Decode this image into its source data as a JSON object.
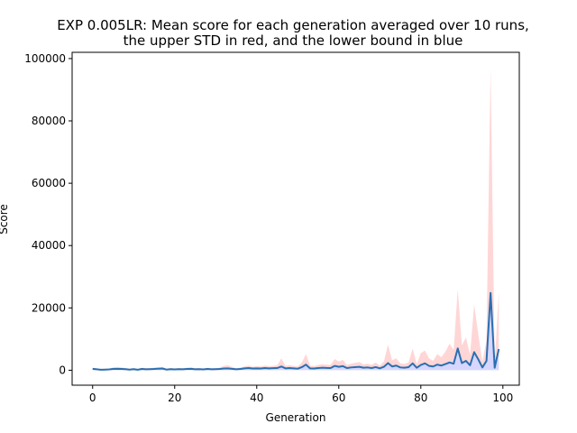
{
  "chart_data": {
    "type": "line",
    "title_line1": "EXP 0.005LR: Mean score for each generation averaged over 10 runs,",
    "title_line2": "the upper STD in red, and the lower bound in blue",
    "xlabel": "Generation",
    "ylabel": "Score",
    "xlim": [
      -5,
      104
    ],
    "ylim": [
      -4800,
      102000
    ],
    "xticks": [
      0,
      20,
      40,
      60,
      80,
      100
    ],
    "yticks": [
      0,
      20000,
      40000,
      60000,
      80000,
      100000
    ],
    "xtick_labels": [
      "0",
      "20",
      "40",
      "60",
      "80",
      "100"
    ],
    "ytick_labels": [
      "0",
      "20000",
      "40000",
      "60000",
      "80000",
      "100000"
    ],
    "colors": {
      "mean": "#2a6fb0",
      "upper": "#ffd6d6",
      "lower": "#d6d6ff"
    },
    "series": [
      {
        "role": "mean",
        "x": [
          0,
          1,
          2,
          3,
          4,
          5,
          6,
          7,
          8,
          9,
          10,
          11,
          12,
          13,
          14,
          15,
          16,
          17,
          18,
          19,
          20,
          21,
          22,
          23,
          24,
          25,
          26,
          27,
          28,
          29,
          30,
          31,
          32,
          33,
          34,
          35,
          36,
          37,
          38,
          39,
          40,
          41,
          42,
          43,
          44,
          45,
          46,
          47,
          48,
          49,
          50,
          51,
          52,
          53,
          54,
          55,
          56,
          57,
          58,
          59,
          60,
          61,
          62,
          63,
          64,
          65,
          66,
          67,
          68,
          69,
          70,
          71,
          72,
          73,
          74,
          75,
          76,
          77,
          78,
          79,
          80,
          81,
          82,
          83,
          84,
          85,
          86,
          87,
          88,
          89,
          90,
          91,
          92,
          93,
          94,
          95,
          96,
          97,
          98,
          99
        ],
        "values": [
          450,
          300,
          150,
          200,
          250,
          400,
          450,
          400,
          350,
          200,
          350,
          150,
          400,
          300,
          350,
          400,
          500,
          550,
          200,
          350,
          250,
          350,
          300,
          400,
          450,
          300,
          350,
          250,
          400,
          300,
          350,
          400,
          550,
          600,
          450,
          300,
          400,
          600,
          700,
          550,
          600,
          550,
          700,
          600,
          650,
          700,
          1200,
          600,
          700,
          600,
          500,
          1000,
          1800,
          600,
          550,
          700,
          800,
          750,
          700,
          1400,
          1100,
          1300,
          700,
          900,
          1000,
          1100,
          800,
          900,
          700,
          1000,
          600,
          1100,
          2300,
          1200,
          1500,
          900,
          800,
          1000,
          2200,
          800,
          1700,
          2200,
          1400,
          1200,
          1800,
          1500,
          2000,
          2500,
          2100,
          7000,
          2300,
          3000,
          1600,
          5800,
          3500,
          900,
          3000,
          24800,
          800,
          6800
        ]
      },
      {
        "role": "upper",
        "x": [
          0,
          1,
          2,
          3,
          4,
          5,
          6,
          7,
          8,
          9,
          10,
          11,
          12,
          13,
          14,
          15,
          16,
          17,
          18,
          19,
          20,
          21,
          22,
          23,
          24,
          25,
          26,
          27,
          28,
          29,
          30,
          31,
          32,
          33,
          34,
          35,
          36,
          37,
          38,
          39,
          40,
          41,
          42,
          43,
          44,
          45,
          46,
          47,
          48,
          49,
          50,
          51,
          52,
          53,
          54,
          55,
          56,
          57,
          58,
          59,
          60,
          61,
          62,
          63,
          64,
          65,
          66,
          67,
          68,
          69,
          70,
          71,
          72,
          73,
          74,
          75,
          76,
          77,
          78,
          79,
          80,
          81,
          82,
          83,
          84,
          85,
          86,
          87,
          88,
          89,
          90,
          91,
          92,
          93,
          94,
          95,
          96,
          97,
          98,
          99
        ],
        "values": [
          800,
          600,
          400,
          450,
          500,
          900,
          1100,
          900,
          700,
          500,
          700,
          400,
          800,
          650,
          700,
          850,
          1000,
          1100,
          500,
          700,
          550,
          700,
          650,
          800,
          900,
          650,
          700,
          550,
          800,
          650,
          700,
          800,
          1400,
          1600,
          1000,
          650,
          800,
          1200,
          1500,
          1100,
          1300,
          1200,
          1500,
          1300,
          1400,
          1600,
          3800,
          1400,
          1600,
          1400,
          1200,
          2500,
          5200,
          1500,
          1300,
          1700,
          1900,
          1800,
          1700,
          3600,
          2800,
          3300,
          1700,
          2100,
          2400,
          2600,
          1900,
          2100,
          1700,
          2500,
          1500,
          2800,
          8200,
          3200,
          3800,
          2200,
          2000,
          2500,
          7000,
          2000,
          5500,
          6300,
          3800,
          3000,
          5200,
          4200,
          6000,
          8500,
          6500,
          26000,
          8000,
          10500,
          5000,
          21000,
          11500,
          2800,
          9500,
          97000,
          2500,
          25000
        ]
      },
      {
        "role": "lower",
        "x": [
          0,
          1,
          2,
          3,
          4,
          5,
          6,
          7,
          8,
          9,
          10,
          11,
          12,
          13,
          14,
          15,
          16,
          17,
          18,
          19,
          20,
          21,
          22,
          23,
          24,
          25,
          26,
          27,
          28,
          29,
          30,
          31,
          32,
          33,
          34,
          35,
          36,
          37,
          38,
          39,
          40,
          41,
          42,
          43,
          44,
          45,
          46,
          47,
          48,
          49,
          50,
          51,
          52,
          53,
          54,
          55,
          56,
          57,
          58,
          59,
          60,
          61,
          62,
          63,
          64,
          65,
          66,
          67,
          68,
          69,
          70,
          71,
          72,
          73,
          74,
          75,
          76,
          77,
          78,
          79,
          80,
          81,
          82,
          83,
          84,
          85,
          86,
          87,
          88,
          89,
          90,
          91,
          92,
          93,
          94,
          95,
          96,
          97,
          98,
          99
        ],
        "values": [
          0,
          0,
          0,
          0,
          0,
          0,
          0,
          0,
          0,
          0,
          0,
          0,
          0,
          0,
          0,
          0,
          0,
          0,
          0,
          0,
          0,
          0,
          0,
          0,
          0,
          0,
          0,
          0,
          0,
          0,
          0,
          0,
          0,
          0,
          0,
          0,
          0,
          0,
          0,
          0,
          0,
          0,
          0,
          0,
          0,
          0,
          0,
          0,
          0,
          0,
          0,
          0,
          0,
          0,
          0,
          0,
          0,
          0,
          0,
          0,
          0,
          0,
          0,
          0,
          0,
          0,
          0,
          0,
          0,
          0,
          0,
          0,
          0,
          0,
          0,
          0,
          0,
          0,
          0,
          0,
          0,
          0,
          0,
          0,
          0,
          0,
          0,
          0,
          0,
          0,
          0,
          0,
          0,
          0,
          0,
          0,
          0,
          0,
          0,
          0
        ]
      }
    ]
  }
}
